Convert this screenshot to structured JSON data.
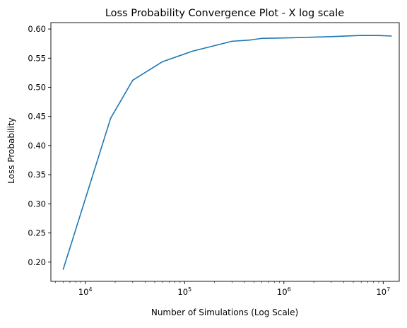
{
  "chart_data": {
    "type": "line",
    "title": "Loss Probability Convergence Plot - X log scale",
    "xlabel": "Number of Simulations (Log Scale)",
    "ylabel": "Loss Probability",
    "xscale": "log",
    "xlim": [
      4500,
      14500000
    ],
    "ylim": [
      0.167,
      0.611
    ],
    "grid": false,
    "x_ticks": [
      {
        "value": 10000,
        "base": "10",
        "exp": "4"
      },
      {
        "value": 100000,
        "base": "10",
        "exp": "5"
      },
      {
        "value": 1000000,
        "base": "10",
        "exp": "6"
      },
      {
        "value": 10000000,
        "base": "10",
        "exp": "7"
      }
    ],
    "y_ticks": [
      "0.20",
      "0.25",
      "0.30",
      "0.35",
      "0.40",
      "0.45",
      "0.50",
      "0.55",
      "0.60"
    ],
    "series": [
      {
        "color": "#1f77b4",
        "x": [
          6000,
          18000,
          30000,
          60000,
          120000,
          300000,
          450000,
          600000,
          1200000,
          3000000,
          6000000,
          9000000,
          12000000
        ],
        "y": [
          0.188,
          0.447,
          0.512,
          0.544,
          0.562,
          0.579,
          0.581,
          0.584,
          0.585,
          0.587,
          0.589,
          0.589,
          0.588
        ]
      }
    ]
  }
}
